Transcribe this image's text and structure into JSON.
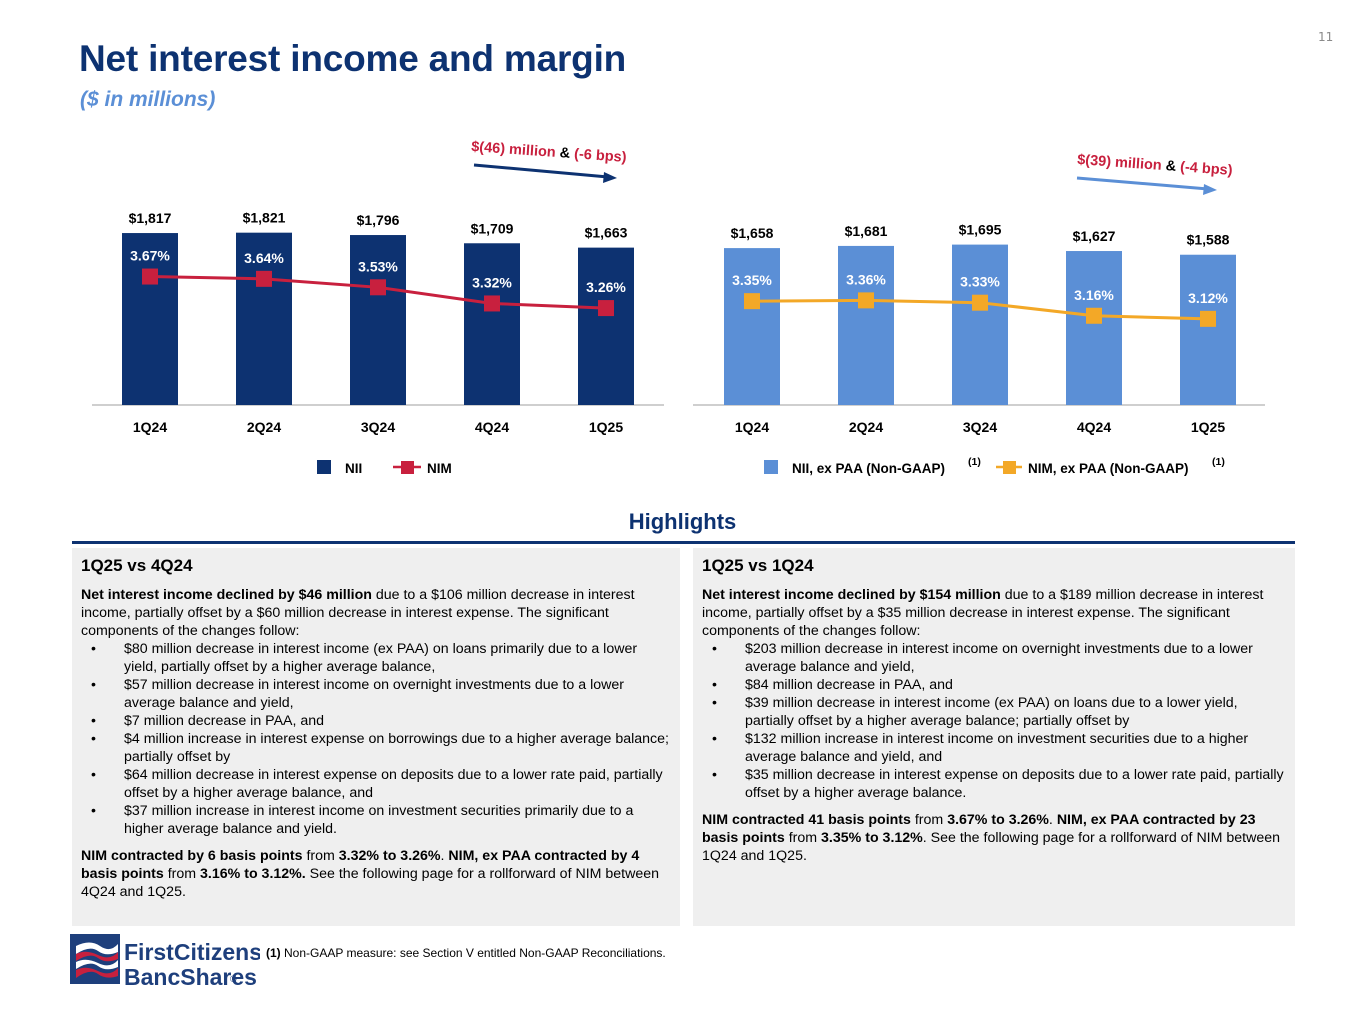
{
  "page_number": "11",
  "title": "Net interest income and margin",
  "subtitle": "($ in millions)",
  "colors": {
    "navy": "#0d3271",
    "light_blue": "#5b8fd6",
    "nim_red": "#c8203e",
    "nim_orange": "#f3a827",
    "callout_red": "#c8203e",
    "panel_bg": "#efefef"
  },
  "chart_data": [
    {
      "type": "bar",
      "categories": [
        "1Q24",
        "2Q24",
        "3Q24",
        "4Q24",
        "1Q25"
      ],
      "series": [
        {
          "name": "NII",
          "kind": "bar",
          "values": [
            1817,
            1821,
            1796,
            1709,
            1663
          ],
          "labels": [
            "$1,817",
            "$1,821",
            "$1,796",
            "$1,709",
            "$1,663"
          ]
        },
        {
          "name": "NIM",
          "kind": "line",
          "values": [
            3.67,
            3.64,
            3.53,
            3.32,
            3.26
          ],
          "labels": [
            "3.67%",
            "3.64%",
            "3.53%",
            "3.32%",
            "3.26%"
          ]
        }
      ],
      "legend": [
        {
          "label": "NII",
          "sup": ""
        },
        {
          "label": "NIM",
          "sup": ""
        }
      ],
      "callout": {
        "amount": "$(46) million",
        "amp": "&",
        "bps": "(-6 bps)"
      },
      "bar_ylim": [
        0,
        2050
      ],
      "line_ylim": [
        2.0,
        4.6
      ]
    },
    {
      "type": "bar",
      "categories": [
        "1Q24",
        "2Q24",
        "3Q24",
        "4Q24",
        "1Q25"
      ],
      "series": [
        {
          "name": "NII, ex PAA (Non-GAAP)",
          "kind": "bar",
          "values": [
            1658,
            1681,
            1695,
            1627,
            1588
          ],
          "labels": [
            "$1,658",
            "$1,681",
            "$1,695",
            "$1,627",
            "$1,588"
          ]
        },
        {
          "name": "NIM, ex PAA (Non-GAAP)",
          "kind": "line",
          "values": [
            3.35,
            3.36,
            3.33,
            3.16,
            3.12
          ],
          "labels": [
            "3.35%",
            "3.36%",
            "3.33%",
            "3.16%",
            "3.12%"
          ]
        }
      ],
      "legend": [
        {
          "label": "NII, ex PAA (Non-GAAP)",
          "sup": "(1)"
        },
        {
          "label": "NIM, ex PAA (Non-GAAP)",
          "sup": "(1)"
        }
      ],
      "callout": {
        "amount": "$(39) million",
        "amp": "&",
        "bps": "(-4 bps)"
      },
      "bar_ylim": [
        0,
        2050
      ],
      "line_ylim": [
        2.0,
        4.6
      ]
    }
  ],
  "highlights": {
    "heading": "Highlights",
    "left": {
      "heading": "1Q25 vs 4Q24",
      "intro_bold": "Net interest income declined by $46 million",
      "intro_rest": " due to a $106 million decrease in interest income, partially offset by a $60 million decrease in interest expense. The significant components of the changes follow:",
      "bullet_char": "•",
      "bullets": [
        "$80 million decrease in interest income (ex PAA) on loans primarily due to a lower yield, partially offset by a higher average balance,",
        "$57 million decrease in interest income on overnight investments due to a lower average balance and yield,",
        "$7 million decrease in PAA, and",
        "$4 million increase in interest expense on borrowings due to a higher average balance; partially offset by",
        "$64 million decrease in interest expense on deposits due to a lower rate paid, partially offset by a higher average balance, and",
        "$37 million increase in interest income on investment securities primarily due to a higher average balance and yield."
      ],
      "nim_1": "NIM contracted by 6 basis points",
      "nim_2": " from ",
      "nim_3": "3.32% to 3.26%",
      "nim_4": ". ",
      "nim_5": "NIM, ex PAA contracted by 4 basis points",
      "nim_6": " from ",
      "nim_7": "3.16% to 3.12%.",
      "nim_8": " See the following page for a rollforward of NIM between 4Q24 and 1Q25."
    },
    "right": {
      "heading": "1Q25 vs 1Q24",
      "intro_bold": "Net interest income declined by $154 million",
      "intro_rest": " due to a $189 million decrease in interest income, partially offset by a $35 million decrease in interest expense. The significant components of the changes follow:",
      "bullet_char": "•",
      "bullets": [
        "$203 million decrease in interest income on overnight investments due to a lower average balance and yield,",
        "$84 million decrease in PAA, and",
        "$39 million decrease in interest income (ex PAA) on loans due to a lower yield, partially offset by a higher average balance; partially offset by",
        "$132 million increase in interest income on investment securities due to a higher average balance and yield, and",
        "$35 million decrease in interest expense on deposits due to a lower rate paid, partially offset by a higher average balance."
      ],
      "nim_1": "NIM contracted 41 basis points",
      "nim_2": " from ",
      "nim_3": "3.67% to 3.26%",
      "nim_4": ". ",
      "nim_5": "NIM, ex PAA contracted by 23 basis points",
      "nim_6": " from ",
      "nim_7": "3.35% to 3.12%",
      "nim_8": ". See the following page for a rollforward of NIM between 1Q24 and 1Q25."
    }
  },
  "footnote": {
    "marker": "(1)",
    "text": " Non-GAAP measure: see Section V entitled Non-GAAP Reconciliations."
  },
  "logo": {
    "line1": "FirstCitizens",
    "line2": "BancShares",
    "mark": "®"
  }
}
